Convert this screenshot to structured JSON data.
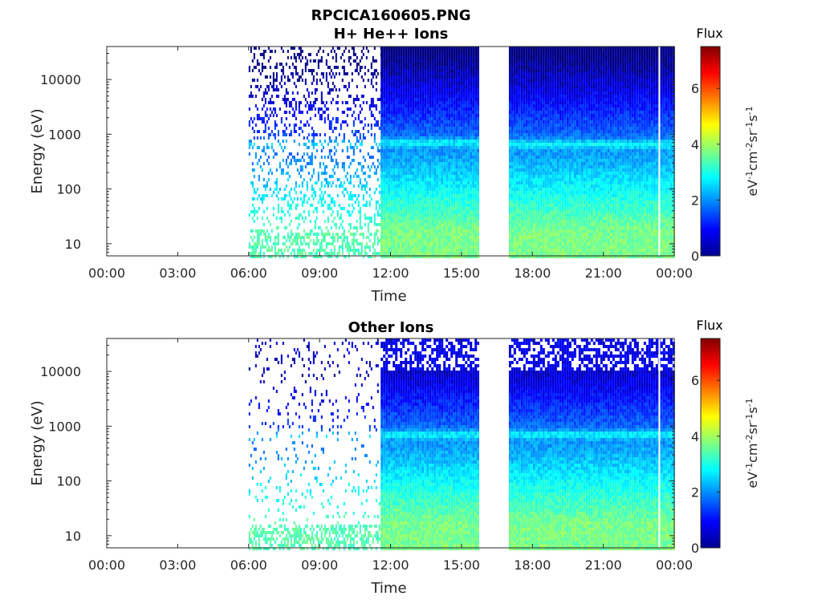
{
  "figure": {
    "title": "RPCICA160605.PNG"
  },
  "colors": {
    "axis": "#262626",
    "background": "#ffffff",
    "colormap": "jet"
  },
  "chart_data": [
    {
      "type": "heatmap",
      "title": "H+ He++ Ions",
      "xlabel": "Time",
      "ylabel": "Energy (eV)",
      "y_scale": "log",
      "ylim": [
        6,
        40000
      ],
      "xlim": [
        "00:00",
        "24:00"
      ],
      "x_tick_labels": [
        "00:00",
        "03:00",
        "06:00",
        "09:00",
        "12:00",
        "15:00",
        "18:00",
        "21:00",
        "00:00"
      ],
      "y_tick_labels": [
        "10",
        "100",
        "1000",
        "10000"
      ],
      "colorbar": {
        "title": "Flux",
        "label": "eV-1cm-2sr-1s-1",
        "range": [
          0,
          7.5
        ],
        "tick_labels": [
          "0",
          "2",
          "4",
          "6"
        ]
      },
      "data_intervals": [
        {
          "start": "06:00",
          "end": "11:35",
          "density": "sparse",
          "peak_energy_eV": 700
        },
        {
          "start": "11:35",
          "end": "15:45",
          "density": "dense",
          "peak_energy_eV": 750
        },
        {
          "start": "17:00",
          "end": "24:00",
          "density": "dense",
          "peak_energy_eV": 700
        }
      ],
      "data_gaps": [
        {
          "start": "15:45",
          "end": "17:00"
        },
        {
          "start": "23:20",
          "end": "23:24"
        }
      ]
    },
    {
      "type": "heatmap",
      "title": "Other Ions",
      "xlabel": "Time",
      "ylabel": "Energy (eV)",
      "y_scale": "log",
      "ylim": [
        6,
        40000
      ],
      "xlim": [
        "00:00",
        "24:00"
      ],
      "x_tick_labels": [
        "00:00",
        "03:00",
        "06:00",
        "09:00",
        "12:00",
        "15:00",
        "18:00",
        "21:00",
        "00:00"
      ],
      "y_tick_labels": [
        "10",
        "100",
        "1000",
        "10000"
      ],
      "colorbar": {
        "title": "Flux",
        "label": "eV-1cm-2sr-1s-1",
        "range": [
          0,
          7.5
        ],
        "tick_labels": [
          "0",
          "2",
          "4",
          "6"
        ]
      },
      "data_intervals": [
        {
          "start": "06:00",
          "end": "11:35",
          "density": "sparse",
          "peak_energy_eV": 700
        },
        {
          "start": "11:35",
          "end": "15:45",
          "density": "dense",
          "peak_energy_eV": 750
        },
        {
          "start": "17:00",
          "end": "24:00",
          "density": "dense",
          "peak_energy_eV": 750
        }
      ],
      "data_gaps": [
        {
          "start": "15:45",
          "end": "17:00"
        },
        {
          "start": "23:20",
          "end": "23:24"
        }
      ]
    }
  ]
}
